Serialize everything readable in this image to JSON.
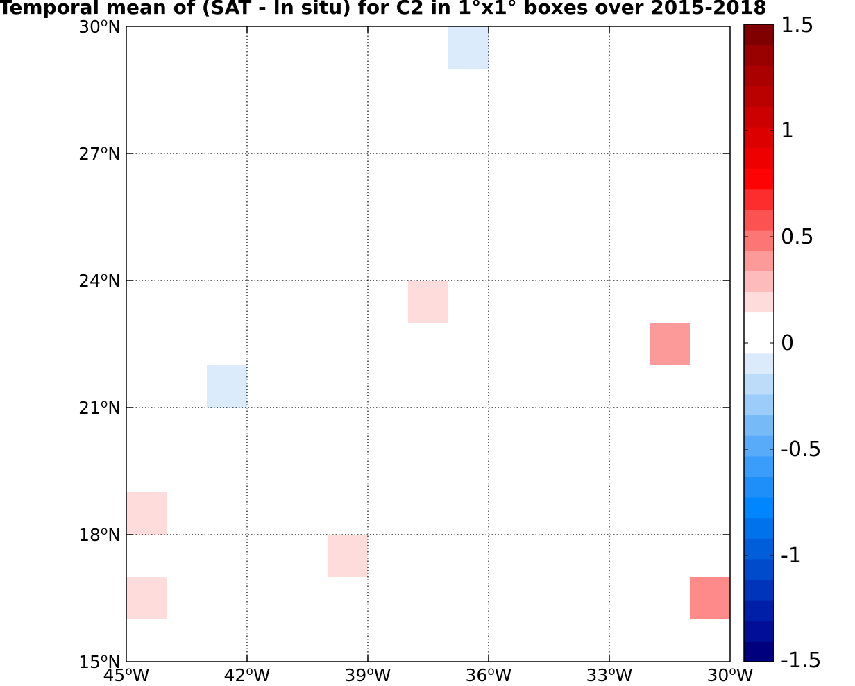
{
  "map": {
    "title": "Temporal mean of (SAT - In situ) for C2 in 1°x1° boxes over 2015-2018",
    "extent": {
      "lon_min": -45,
      "lon_max": -30,
      "lat_min": 15,
      "lat_max": 30
    },
    "x_ticks": [
      {
        "lon": -45,
        "deg": "45",
        "hem": "W"
      },
      {
        "lon": -42,
        "deg": "42",
        "hem": "W"
      },
      {
        "lon": -39,
        "deg": "39",
        "hem": "W"
      },
      {
        "lon": -36,
        "deg": "36",
        "hem": "W"
      },
      {
        "lon": -33,
        "deg": "33",
        "hem": "W"
      },
      {
        "lon": -30,
        "deg": "30",
        "hem": "W"
      }
    ],
    "y_ticks": [
      {
        "lat": 15,
        "deg": "15",
        "hem": "N"
      },
      {
        "lat": 18,
        "deg": "18",
        "hem": "N"
      },
      {
        "lat": 21,
        "deg": "21",
        "hem": "N"
      },
      {
        "lat": 24,
        "deg": "24",
        "hem": "N"
      },
      {
        "lat": 27,
        "deg": "27",
        "hem": "N"
      },
      {
        "lat": 30,
        "deg": "30",
        "hem": "N"
      }
    ],
    "boxes": [
      {
        "lon": -37,
        "lat": 29,
        "value": -0.1
      },
      {
        "lon": -38,
        "lat": 23,
        "value": 0.1
      },
      {
        "lon": -43,
        "lat": 21,
        "value": -0.1
      },
      {
        "lon": -32,
        "lat": 22,
        "value": 0.35
      },
      {
        "lon": -45,
        "lat": 18,
        "value": 0.1
      },
      {
        "lon": -40,
        "lat": 17,
        "value": 0.1
      },
      {
        "lon": -45,
        "lat": 16,
        "value": 0.1
      },
      {
        "lon": -31,
        "lat": 16,
        "value": 0.4
      }
    ]
  },
  "colorbar": {
    "min": -1.5,
    "max": 1.5,
    "step": 0.1,
    "white_band": [
      -0.1,
      0.1
    ],
    "tick_labels": [
      {
        "value": 1.5,
        "text": "1.5"
      },
      {
        "value": 1,
        "text": "1"
      },
      {
        "value": 0.5,
        "text": "0.5"
      },
      {
        "value": 0,
        "text": "0"
      },
      {
        "value": -0.5,
        "text": "-0.5"
      },
      {
        "value": -1,
        "text": "-1"
      },
      {
        "value": -1.5,
        "text": "-1.5"
      }
    ],
    "colors": [
      "#00007f",
      "#000f95",
      "#001fa8",
      "#0035bb",
      "#004acc",
      "#005edb",
      "#0072ec",
      "#0087ff",
      "#1e8ff8",
      "#3a9dfb",
      "#58abf9",
      "#77baf8",
      "#9cccfa",
      "#bcdcfa",
      "#dbebfb",
      "#ffffff",
      "#ffffff",
      "#fedcdc",
      "#fdbbbb",
      "#fc9999",
      "#fd7676",
      "#fd5252",
      "#fe2d2d",
      "#fe0303",
      "#ee0000",
      "#dd0000",
      "#cc0000",
      "#bb0000",
      "#aa0000",
      "#990000",
      "#800000"
    ]
  }
}
